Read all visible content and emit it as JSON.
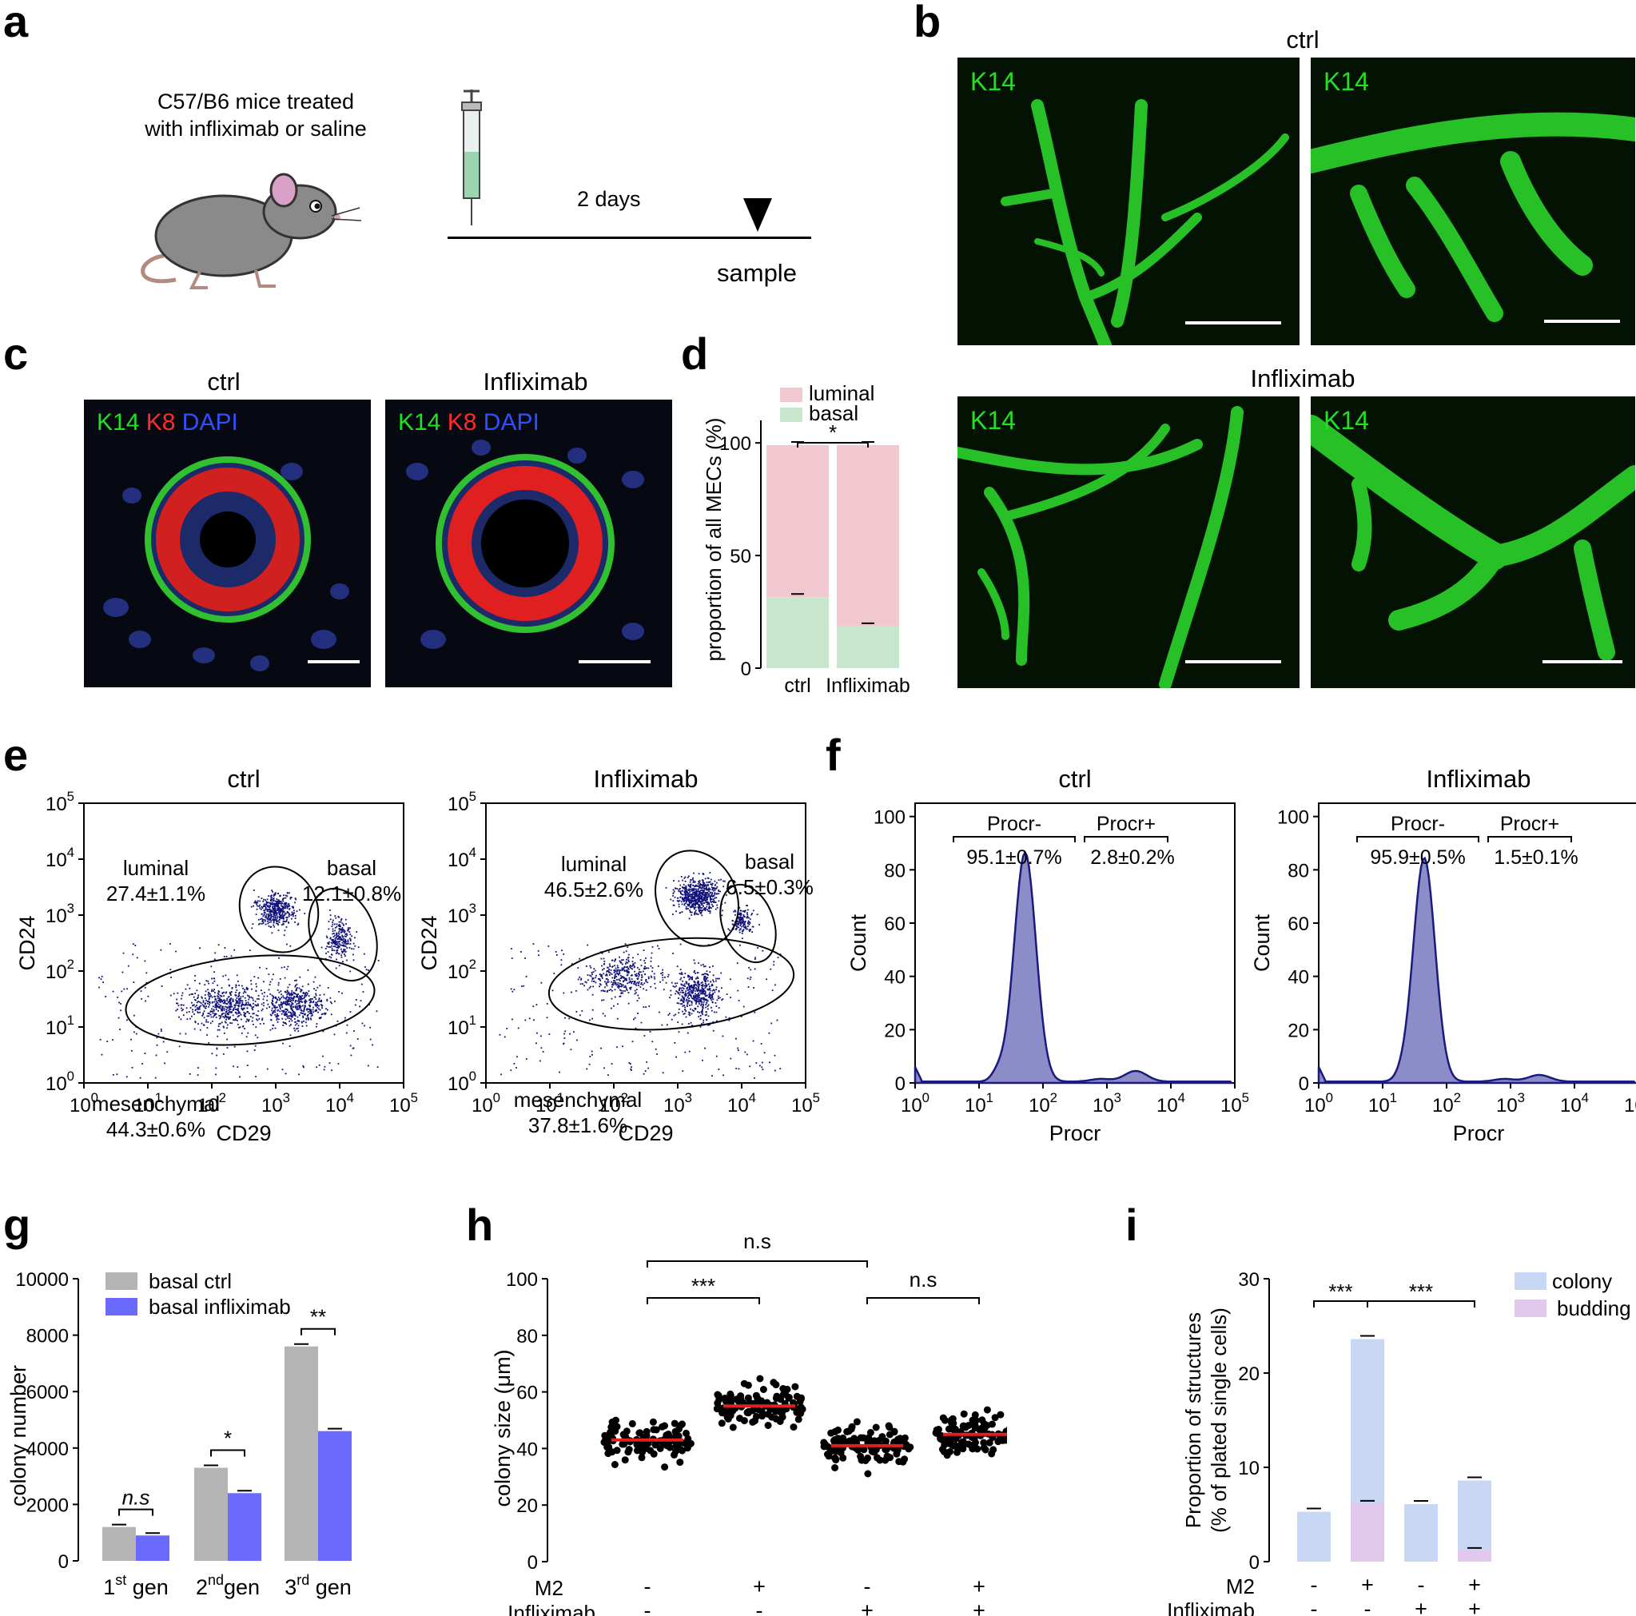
{
  "panel_labels": {
    "a": "a",
    "b": "b",
    "c": "c",
    "d": "d",
    "e": "e",
    "f": "f",
    "g": "g",
    "h": "h",
    "i": "i"
  },
  "panel_a": {
    "caption_line1": "C57/B6 mice treated",
    "caption_line2": "with infliximab or saline",
    "timeline": "2 days",
    "sample": "sample"
  },
  "panel_b": {
    "ctrl": "ctrl",
    "infliximab": "Infliximab",
    "marker": "K14"
  },
  "panel_c": {
    "ctrl": "ctrl",
    "infliximab": "Infliximab",
    "k14": "K14",
    "k8": "K8",
    "dapi": "DAPI"
  },
  "colors": {
    "k14": "#22e022",
    "k8": "#ff2a2a",
    "dapi": "#3050ff",
    "luminal": "#f2c8d0",
    "basal": "#c8e6cc",
    "grey_bar": "#b4b4b4",
    "blue_bar": "#6a6aff",
    "hist_fill": "#8c8cc8",
    "colony": "#c8d8f4",
    "budding": "#e2c8ec"
  },
  "chart_data": [
    {
      "panel": "d",
      "type": "bar",
      "stacked": true,
      "categories": [
        "ctrl",
        "Infliximab"
      ],
      "series": [
        {
          "name": "basal",
          "values": [
            31.5,
            18.5
          ]
        },
        {
          "name": "luminal",
          "values": [
            67.5,
            80.5
          ]
        }
      ],
      "ylabel": "proportion of all MECs (%)",
      "yticks": [
        "0",
        "50",
        "100"
      ],
      "ylim": [
        0,
        110
      ],
      "significance": "*"
    },
    {
      "panel": "e",
      "type": "scatter",
      "titles": [
        "ctrl",
        "Infliximab"
      ],
      "xlabel": "CD29",
      "ylabel": "CD24",
      "tick_base": "10",
      "tick_exp": [
        "0",
        "1",
        "2",
        "3",
        "4",
        "5"
      ],
      "gates": [
        {
          "luminal_name": "luminal",
          "luminal": "27.4±1.1%",
          "basal_name": "basal",
          "basal": "12.1±0.8%",
          "mes_name": "mesenchymal",
          "mesenchymal": "44.3±0.6%"
        },
        {
          "luminal_name": "luminal",
          "luminal": "46.5±2.6%",
          "basal_name": "basal",
          "basal": "6.5±0.3%",
          "mes_name": "mesenchymal",
          "mesenchymal": "37.8±1.6%"
        }
      ]
    },
    {
      "panel": "f",
      "type": "area",
      "titles": [
        "ctrl",
        "Infliximab"
      ],
      "xlabel": "Procr",
      "ylabel": "Count",
      "yticks": [
        "0",
        "20",
        "40",
        "60",
        "80",
        "100"
      ],
      "ylim": [
        0,
        105
      ],
      "tick_base": "10",
      "tick_exp": [
        "0",
        "1",
        "2",
        "3",
        "4",
        "5"
      ],
      "gates": [
        {
          "neg_name": "Procr-",
          "neg": "95.1±0.7%",
          "pos_name": "Procr+",
          "pos": "2.8±0.2%",
          "peak": 86
        },
        {
          "neg_name": "Procr-",
          "neg": "95.9±0.5%",
          "pos_name": "Procr+",
          "pos": "1.5±0.1%",
          "peak": 84
        }
      ]
    },
    {
      "panel": "g",
      "type": "bar",
      "categories": [
        "1st gen",
        "2nd gen",
        "3rd gen"
      ],
      "cat_parts": [
        [
          "1",
          "st",
          " gen"
        ],
        [
          "2",
          "nd",
          "gen"
        ],
        [
          "3",
          "rd",
          " gen"
        ]
      ],
      "series": [
        {
          "name": "basal ctrl",
          "values": [
            1200,
            3300,
            7600
          ]
        },
        {
          "name": "basal infliximab",
          "values": [
            900,
            2400,
            4600
          ]
        }
      ],
      "ylabel": "colony number",
      "yticks": [
        "0",
        "2000",
        "4000",
        "6000",
        "8000",
        "10000"
      ],
      "ylim": [
        0,
        10000
      ],
      "significance": [
        "n.s",
        "*",
        "**"
      ]
    },
    {
      "panel": "h",
      "type": "scatter",
      "groups": [
        {
          "M2": "-",
          "Infliximab": "-",
          "median": 43
        },
        {
          "M2": "+",
          "Infliximab": "-",
          "median": 55
        },
        {
          "M2": "-",
          "Infliximab": "+",
          "median": 41
        },
        {
          "M2": "+",
          "Infliximab": "+",
          "median": 45
        }
      ],
      "ylabel": "colony size (μm)",
      "yticks": [
        "0",
        "20",
        "40",
        "60",
        "80",
        "100"
      ],
      "ylim": [
        0,
        100
      ],
      "row_labels": [
        "M2",
        "Infliximab"
      ],
      "significance": [
        "n.s",
        "***",
        "n.s"
      ]
    },
    {
      "panel": "i",
      "type": "bar",
      "stacked": true,
      "groups": [
        {
          "M2": "-",
          "Infliximab": "-"
        },
        {
          "M2": "+",
          "Infliximab": "-"
        },
        {
          "M2": "-",
          "Infliximab": "+"
        },
        {
          "M2": "+",
          "Infliximab": "+"
        }
      ],
      "series": [
        {
          "name": "colony",
          "values": [
            5.3,
            23.6,
            6.1,
            8.6
          ]
        },
        {
          "name": "budding",
          "values": [
            0,
            6.2,
            0,
            1.2
          ]
        }
      ],
      "ylabel_line1": "Proportion of structures",
      "ylabel_line2": "(% of plated single cells)",
      "yticks": [
        "0",
        "10",
        "20",
        "30"
      ],
      "ylim": [
        0,
        30
      ],
      "row_labels": [
        "M2",
        "Infliximab"
      ],
      "significance": [
        "***",
        "***"
      ]
    }
  ]
}
